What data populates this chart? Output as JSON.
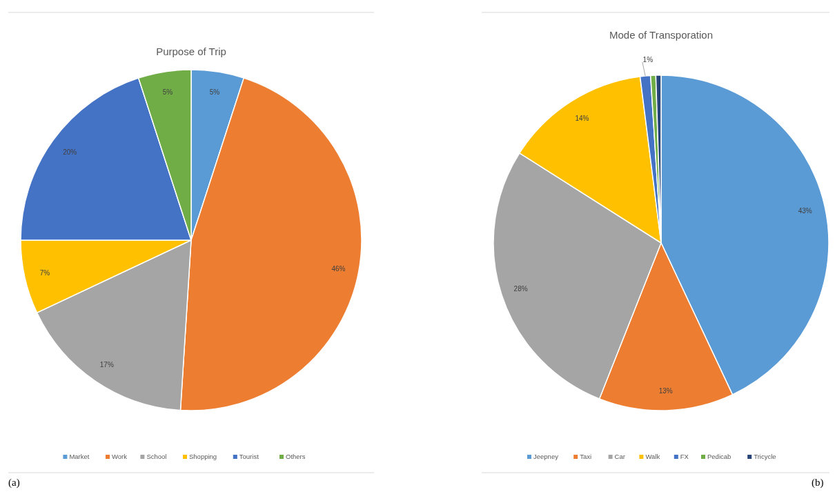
{
  "chart_data": [
    {
      "type": "pie",
      "title": "Purpose of Trip",
      "categories": [
        "Market",
        "Work",
        "School",
        "Shopping",
        "Tourist",
        "Others"
      ],
      "values": [
        5,
        46,
        17,
        7,
        20,
        5
      ],
      "colors": [
        "#5b9bd5",
        "#ed7d31",
        "#a5a5a5",
        "#ffc000",
        "#4472c4",
        "#70ad47"
      ],
      "value_labels": [
        "5%",
        "46%",
        "17%",
        "7%",
        "20%",
        "5%"
      ],
      "legend": "bottom",
      "annotations": [
        "(a)"
      ]
    },
    {
      "type": "pie",
      "title": "Mode of Transporation",
      "categories": [
        "Jeepney",
        "Taxi",
        "Car",
        "Walk",
        "FX",
        "Pedicab",
        "Tricycle"
      ],
      "values": [
        43,
        13,
        28,
        14,
        1,
        0.5,
        0.5
      ],
      "colors": [
        "#5b9bd5",
        "#ed7d31",
        "#a5a5a5",
        "#ffc000",
        "#4472c4",
        "#70ad47",
        "#264478"
      ],
      "value_labels": [
        "43%",
        "13%",
        "28%",
        "14%",
        "1%",
        null,
        null
      ],
      "legend": "bottom",
      "annotations": [
        "(b)"
      ]
    }
  ]
}
